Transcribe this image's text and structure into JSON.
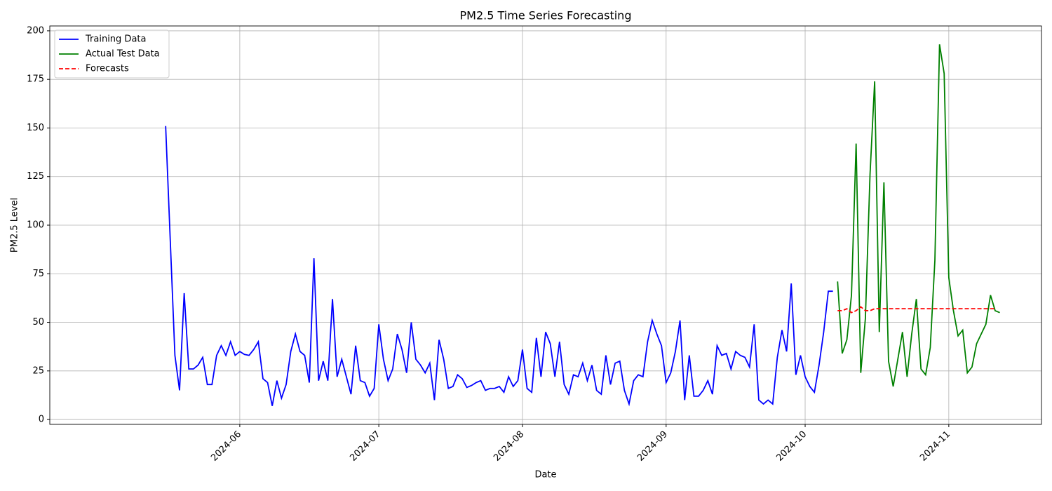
{
  "chart_data": {
    "type": "line",
    "title": "PM2.5 Time Series Forecasting",
    "xlabel": "Date",
    "ylabel": "PM2.5 Level",
    "xlim": [
      -25,
      189
    ],
    "xticks": [
      {
        "value": 16,
        "label": "2024-06"
      },
      {
        "value": 46,
        "label": "2024-07"
      },
      {
        "value": 77,
        "label": "2024-08"
      },
      {
        "value": 108,
        "label": "2024-09"
      },
      {
        "value": 138,
        "label": "2024-10"
      },
      {
        "value": 169,
        "label": "2024-11"
      }
    ],
    "ylim": [
      -2.5,
      202.5
    ],
    "yticks": [
      0,
      25,
      50,
      75,
      100,
      125,
      150,
      175,
      200
    ],
    "grid": true,
    "legend": "upper-left",
    "series": [
      {
        "name": "Training Data",
        "color": "#0000ff",
        "linestyle": "solid",
        "values": [
          151,
          92,
          33,
          15,
          65,
          26,
          26,
          28,
          32,
          18,
          18,
          33,
          38,
          33,
          40,
          33,
          35,
          33.5,
          33,
          36,
          40,
          21,
          19,
          7,
          20,
          11,
          18,
          35,
          44,
          35,
          33,
          19,
          83,
          20,
          30,
          20,
          62,
          22,
          31,
          22,
          13,
          38,
          20,
          19,
          12,
          16,
          49,
          31,
          20,
          26,
          44,
          36,
          24,
          50,
          31,
          28,
          24,
          29,
          10,
          41,
          31,
          16,
          17,
          23,
          21,
          16.5,
          17.5,
          19,
          20,
          15,
          16,
          16,
          17,
          14,
          22,
          17,
          20,
          36,
          16,
          14,
          42,
          22,
          45,
          39,
          22,
          40,
          18,
          13,
          23,
          22,
          29,
          20,
          28,
          15,
          13,
          33,
          18,
          29,
          30,
          15,
          8,
          20,
          23,
          22,
          40,
          51,
          44,
          38,
          19,
          24,
          35,
          51,
          10,
          33,
          12,
          12,
          15,
          20,
          13,
          38,
          33,
          34,
          26,
          35,
          33,
          32,
          27,
          49,
          10,
          8,
          10,
          8,
          32,
          46,
          35,
          70,
          23,
          33,
          22,
          17,
          14,
          28,
          45,
          66,
          66,
          null,
          null,
          null,
          null,
          null,
          null,
          null,
          null,
          null,
          null,
          null,
          null,
          null,
          null,
          null,
          null,
          null,
          null,
          null,
          null,
          null,
          null,
          null,
          null,
          null,
          null,
          null,
          null,
          null,
          null,
          null,
          null,
          null,
          null,
          null,
          null
        ]
      },
      {
        "name": "Actual Test Data",
        "color": "#008000",
        "linestyle": "solid",
        "values": [
          null,
          null,
          null,
          null,
          null,
          null,
          null,
          null,
          null,
          null,
          null,
          null,
          null,
          null,
          null,
          null,
          null,
          null,
          null,
          null,
          null,
          null,
          null,
          null,
          null,
          null,
          null,
          null,
          null,
          null,
          null,
          null,
          null,
          null,
          null,
          null,
          null,
          null,
          null,
          null,
          null,
          null,
          null,
          null,
          null,
          null,
          null,
          null,
          null,
          null,
          null,
          null,
          null,
          null,
          null,
          null,
          null,
          null,
          null,
          null,
          null,
          null,
          null,
          null,
          null,
          null,
          null,
          null,
          null,
          null,
          null,
          null,
          null,
          null,
          null,
          null,
          null,
          null,
          null,
          null,
          null,
          null,
          null,
          null,
          null,
          null,
          null,
          null,
          null,
          null,
          null,
          null,
          null,
          null,
          null,
          null,
          null,
          null,
          null,
          null,
          null,
          null,
          null,
          null,
          null,
          null,
          null,
          null,
          null,
          null,
          null,
          null,
          null,
          null,
          null,
          null,
          null,
          null,
          null,
          null,
          null,
          null,
          null,
          null,
          null,
          null,
          null,
          null,
          null,
          null,
          null,
          null,
          null,
          null,
          null,
          null,
          null,
          null,
          null,
          null,
          null,
          null,
          null,
          null,
          null,
          71,
          34,
          41,
          64,
          142,
          24,
          52,
          126,
          174,
          45,
          122,
          30,
          17,
          31,
          45,
          22,
          44,
          62,
          26,
          23,
          37,
          82,
          193,
          178,
          73,
          56,
          43,
          46,
          24,
          27,
          39,
          44,
          49,
          64,
          56,
          55
        ]
      },
      {
        "name": "Forecasts",
        "color": "#ff0000",
        "linestyle": "dashed",
        "values": [
          null,
          null,
          null,
          null,
          null,
          null,
          null,
          null,
          null,
          null,
          null,
          null,
          null,
          null,
          null,
          null,
          null,
          null,
          null,
          null,
          null,
          null,
          null,
          null,
          null,
          null,
          null,
          null,
          null,
          null,
          null,
          null,
          null,
          null,
          null,
          null,
          null,
          null,
          null,
          null,
          null,
          null,
          null,
          null,
          null,
          null,
          null,
          null,
          null,
          null,
          null,
          null,
          null,
          null,
          null,
          null,
          null,
          null,
          null,
          null,
          null,
          null,
          null,
          null,
          null,
          null,
          null,
          null,
          null,
          null,
          null,
          null,
          null,
          null,
          null,
          null,
          null,
          null,
          null,
          null,
          null,
          null,
          null,
          null,
          null,
          null,
          null,
          null,
          null,
          null,
          null,
          null,
          null,
          null,
          null,
          null,
          null,
          null,
          null,
          null,
          null,
          null,
          null,
          null,
          null,
          null,
          null,
          null,
          null,
          null,
          null,
          null,
          null,
          null,
          null,
          null,
          null,
          null,
          null,
          null,
          null,
          null,
          null,
          null,
          null,
          null,
          null,
          null,
          null,
          null,
          null,
          null,
          null,
          null,
          null,
          null,
          null,
          null,
          null,
          null,
          null,
          null,
          null,
          null,
          null,
          56,
          56,
          57,
          55,
          56,
          58,
          56,
          56,
          57,
          57,
          57,
          57,
          57,
          57,
          57,
          57,
          57,
          57,
          57,
          57,
          57,
          57,
          57,
          57,
          57,
          57,
          57,
          57,
          57,
          57,
          57,
          57,
          57,
          57,
          57,
          null
        ]
      }
    ]
  }
}
